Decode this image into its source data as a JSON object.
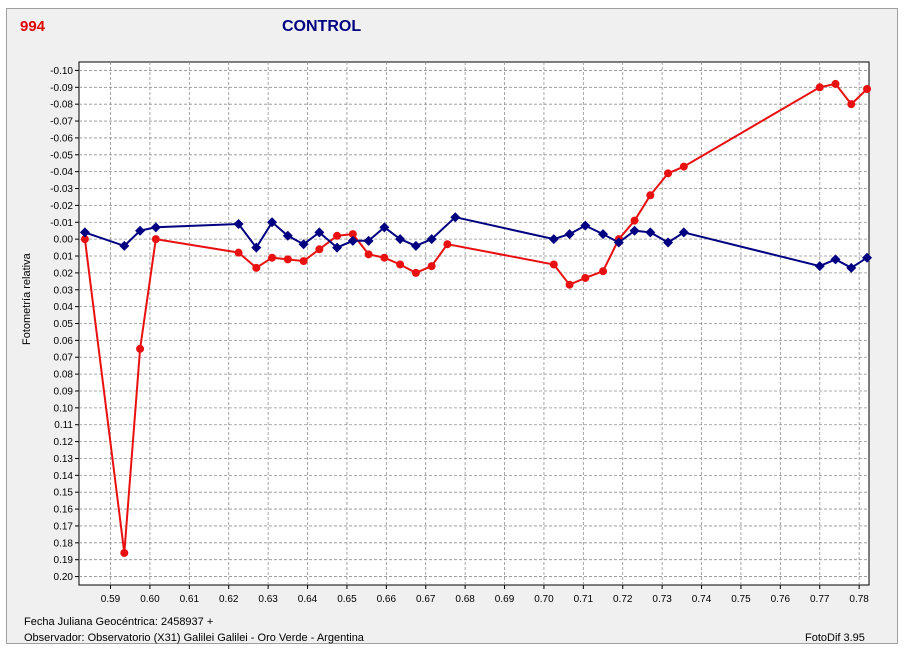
{
  "header": {
    "object_id": "994",
    "title": "CONTROL"
  },
  "footer": {
    "jd_label": "Fecha Juliana Geocéntrica: 2458937 +",
    "observer": "Observador: Observatorio (X31) Galilei Galilei - Oro Verde - Argentina",
    "software": "FotoDif 3.95"
  },
  "colors": {
    "red_series": "#e81010",
    "blue_series": "#000080",
    "grid": "#909090"
  },
  "chart_data": {
    "type": "line",
    "title": "CONTROL",
    "xlabel": "",
    "ylabel": "Fotometría relativa",
    "xlim": [
      0.582,
      0.7825
    ],
    "ylim": [
      -0.105,
      0.205
    ],
    "y_inverted": true,
    "grid": true,
    "x_ticks": [
      "0.59",
      "0.60",
      "0.61",
      "0.62",
      "0.63",
      "0.64",
      "0.65",
      "0.66",
      "0.67",
      "0.68",
      "0.69",
      "0.70",
      "0.71",
      "0.72",
      "0.73",
      "0.74",
      "0.75",
      "0.76",
      "0.77",
      "0.78"
    ],
    "y_ticks": [
      "-0.10",
      "-0.09",
      "-0.08",
      "-0.07",
      "-0.06",
      "-0.05",
      "-0.04",
      "-0.03",
      "-0.02",
      "-0.01",
      "0.00",
      "0.01",
      "0.02",
      "0.03",
      "0.04",
      "0.05",
      "0.06",
      "0.07",
      "0.08",
      "0.09",
      "0.10",
      "0.11",
      "0.12",
      "0.13",
      "0.14",
      "0.15",
      "0.16",
      "0.17",
      "0.18",
      "0.19",
      "0.20"
    ],
    "series": [
      {
        "color": "#e81010",
        "x": [
          0.5835,
          0.5935,
          0.5975,
          0.6015,
          0.6225,
          0.627,
          0.631,
          0.635,
          0.639,
          0.643,
          0.6475,
          0.6515,
          0.6555,
          0.6595,
          0.6635,
          0.6675,
          0.6715,
          0.6755,
          0.7025,
          0.7065,
          0.7105,
          0.715,
          0.719,
          0.723,
          0.727,
          0.7315,
          0.7355,
          0.77,
          0.774,
          0.778,
          0.782
        ],
        "y": [
          0.0,
          0.186,
          0.065,
          0.0,
          0.008,
          0.017,
          0.011,
          0.012,
          0.013,
          0.006,
          -0.002,
          -0.003,
          0.009,
          0.011,
          0.015,
          0.02,
          0.016,
          0.003,
          0.015,
          0.027,
          0.023,
          0.019,
          0.0,
          -0.011,
          -0.026,
          -0.039,
          -0.043,
          -0.09,
          -0.092,
          -0.08,
          -0.089
        ]
      },
      {
        "color": "#000080",
        "x": [
          0.5835,
          0.5935,
          0.5975,
          0.6015,
          0.6225,
          0.627,
          0.631,
          0.635,
          0.639,
          0.643,
          0.6475,
          0.6515,
          0.6555,
          0.6595,
          0.6635,
          0.6675,
          0.6715,
          0.6775,
          0.7025,
          0.7065,
          0.7105,
          0.715,
          0.719,
          0.723,
          0.727,
          0.7315,
          0.7355,
          0.77,
          0.774,
          0.778,
          0.782
        ],
        "y": [
          -0.004,
          0.004,
          -0.005,
          -0.007,
          -0.009,
          0.005,
          -0.01,
          -0.002,
          0.003,
          -0.004,
          0.005,
          0.001,
          0.001,
          -0.007,
          0.0,
          0.004,
          0.0,
          -0.013,
          0.0,
          -0.003,
          -0.008,
          -0.003,
          0.002,
          -0.005,
          -0.004,
          0.002,
          -0.004,
          0.016,
          0.012,
          0.017,
          0.011
        ]
      }
    ]
  }
}
